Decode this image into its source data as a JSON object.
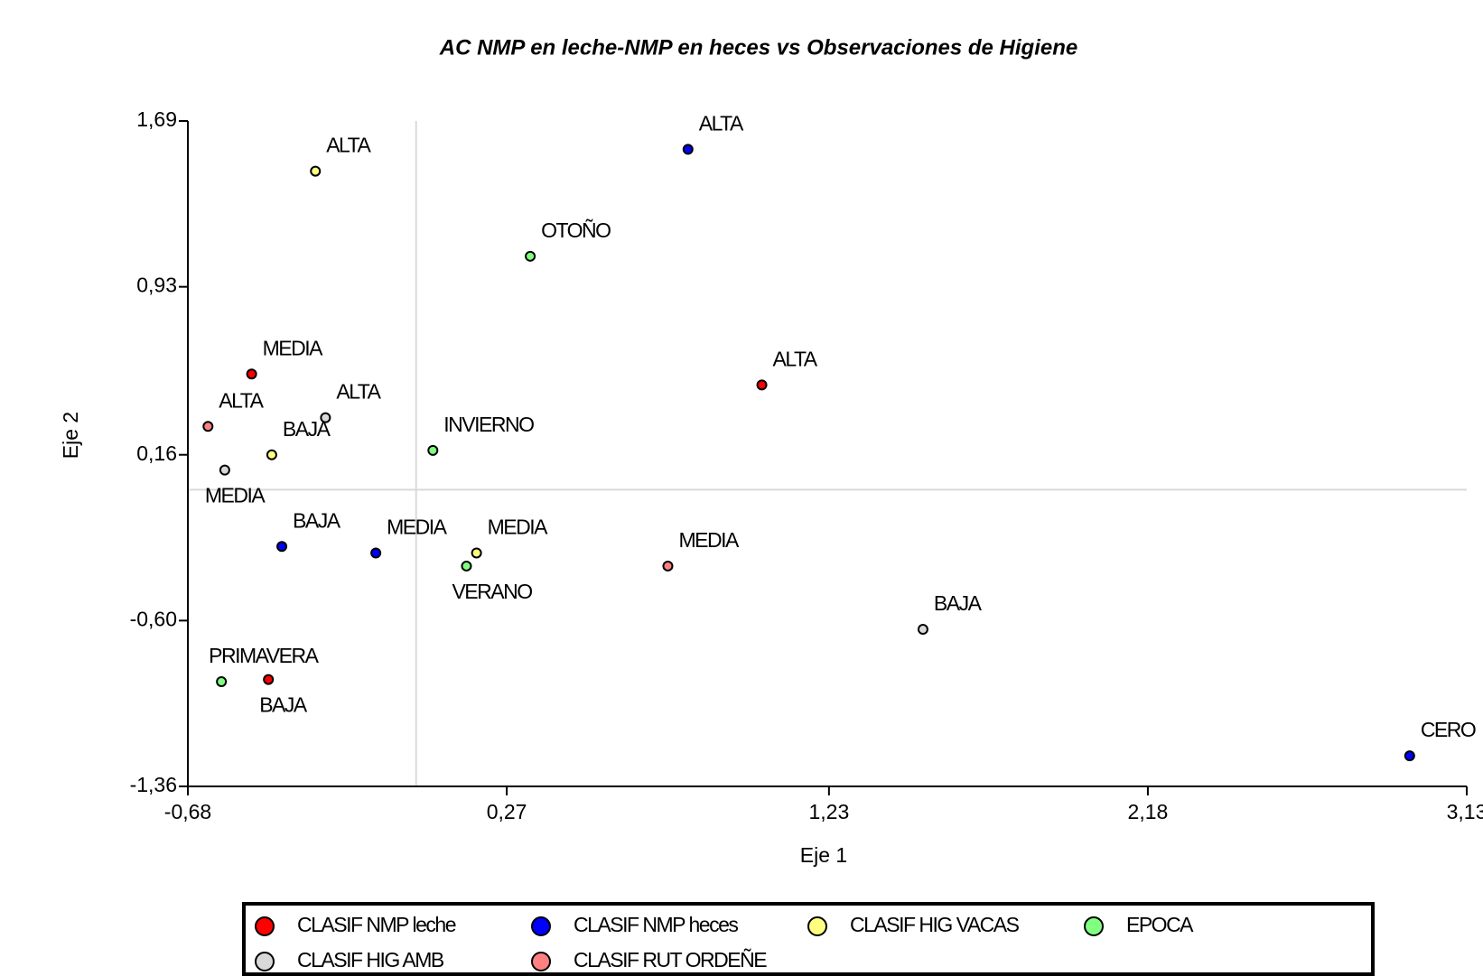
{
  "chart_data": {
    "type": "scatter",
    "title": "AC NMP en leche-NMP en heces vs Observaciones de Higiene",
    "x_label": "Eje 1",
    "y_label": "Eje 2",
    "xlim": [
      -0.68,
      3.13
    ],
    "xticks": [
      {
        "value": -0.68,
        "label": "-0,68"
      },
      {
        "value": 0.27,
        "label": "0,27"
      },
      {
        "value": 1.23,
        "label": "1,23"
      },
      {
        "value": 2.18,
        "label": "2,18"
      },
      {
        "value": 3.13,
        "label": "3,13"
      }
    ],
    "ylim": [
      -1.36,
      1.69
    ],
    "yticks": [
      {
        "value": -1.36,
        "label": "-1,36"
      },
      {
        "value": -0.6,
        "label": "-0,60"
      },
      {
        "value": 0.16,
        "label": "0,16"
      },
      {
        "value": 0.93,
        "label": "0,93"
      },
      {
        "value": 1.69,
        "label": "1,69"
      }
    ],
    "series": [
      {
        "name": "CLASIF NMP leche",
        "color": "#ff0000",
        "x": [
          -0.49,
          1.03,
          -0.44
        ],
        "values": [
          0.53,
          0.48,
          -0.87
        ],
        "labels": [
          "MEDIA",
          "ALTA",
          "BAJA"
        ]
      },
      {
        "name": "CLASIF NMP heces",
        "color": "#0000ff",
        "x": [
          0.81,
          -0.4,
          -0.12,
          2.96
        ],
        "values": [
          1.56,
          -0.26,
          -0.29,
          -1.22
        ],
        "labels": [
          "ALTA",
          "BAJA",
          "MEDIA",
          "CERO"
        ]
      },
      {
        "name": "CLASIF HIG VACAS",
        "color": "#ffff80",
        "x": [
          -0.3,
          -0.43,
          0.18
        ],
        "values": [
          1.46,
          0.16,
          -0.29
        ],
        "labels": [
          "ALTA",
          "BAJA",
          "MEDIA"
        ]
      },
      {
        "name": "EPOCA",
        "color": "#80ff80",
        "x": [
          0.34,
          0.05,
          0.15,
          -0.58
        ],
        "values": [
          1.07,
          0.18,
          -0.35,
          -0.88
        ],
        "labels": [
          "OTOÑO",
          "INVIERNO",
          "VERANO",
          "PRIMAVERA"
        ]
      },
      {
        "name": "CLASIF HIG AMB",
        "color": "#d9d9d9",
        "x": [
          -0.27,
          -0.57,
          1.51
        ],
        "values": [
          0.33,
          0.09,
          -0.64
        ],
        "labels": [
          "ALTA",
          "MEDIA",
          "BAJA"
        ]
      },
      {
        "name": "CLASIF RUT ORDEÑE",
        "color": "#ff8080",
        "x": [
          -0.62,
          0.75
        ],
        "values": [
          0.29,
          -0.35
        ],
        "labels": [
          "ALTA",
          "MEDIA"
        ]
      }
    ]
  }
}
